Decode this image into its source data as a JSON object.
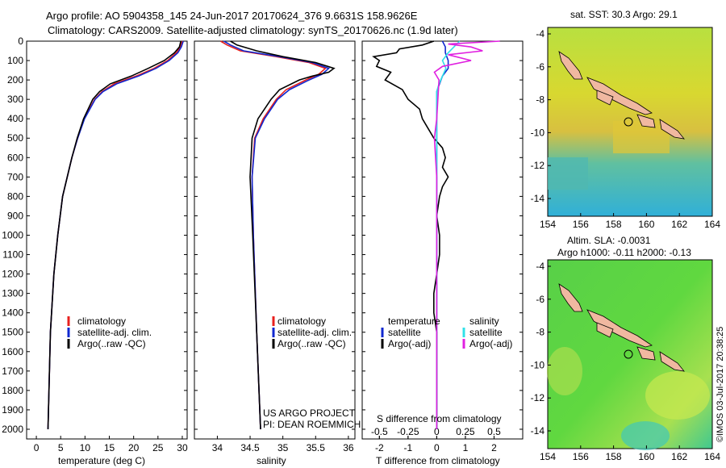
{
  "header": {
    "line1": "Argo profile: AO 5904358_145 24-Jun-2017 20170624_376 9.6631S 158.9626E",
    "line2": "Climatology: CARS2009. Satellite-adjusted climatology: synTS_20170626.nc (1.9d later)"
  },
  "colors": {
    "clim": "#e8201e",
    "sat": "#1028d0",
    "argo": "#000000",
    "sat_s": "#30e0e8",
    "argo_s": "#e020e0"
  },
  "depth_axis": {
    "ylim": [
      0,
      2050
    ],
    "ticks": [
      "0",
      "100",
      "200",
      "300",
      "400",
      "500",
      "600",
      "700",
      "800",
      "900",
      "1000",
      "1100",
      "1200",
      "1300",
      "1400",
      "1500",
      "1600",
      "1700",
      "1800",
      "1900",
      "2000"
    ]
  },
  "chart_data": [
    {
      "type": "line",
      "title": "temperature",
      "xlabel": "temperature (deg C)",
      "ylabel": "depth",
      "xlim": [
        -2,
        31
      ],
      "ylim": [
        2050,
        0
      ],
      "xticks": [
        "0",
        "5",
        "10",
        "15",
        "20",
        "25",
        "30"
      ],
      "legend": [
        "climatology",
        "satellite-adj. clim.",
        "Argo(..raw -QC)"
      ],
      "series": [
        {
          "name": "climatology",
          "depth": [
            0,
            30,
            60,
            100,
            140,
            180,
            220,
            260,
            300,
            400,
            500,
            600,
            800,
            1000,
            1200,
            1500,
            2000
          ],
          "values": [
            30,
            29.6,
            28.8,
            27,
            24.2,
            20.5,
            16,
            13.5,
            12,
            9.8,
            8.5,
            7.3,
            5.4,
            4.4,
            3.6,
            2.9,
            2.4
          ]
        },
        {
          "name": "satellite-adj. clim.",
          "depth": [
            0,
            30,
            60,
            100,
            140,
            180,
            220,
            260,
            300,
            400,
            500,
            600,
            800,
            1000,
            1200,
            1500,
            2000
          ],
          "values": [
            30.2,
            29.8,
            29.1,
            27.3,
            24.6,
            21,
            16.5,
            13.7,
            12.1,
            9.9,
            8.5,
            7.3,
            5.4,
            4.4,
            3.6,
            2.9,
            2.4
          ]
        },
        {
          "name": "Argo(..raw -QC)",
          "depth": [
            0,
            30,
            60,
            100,
            140,
            180,
            220,
            260,
            300,
            400,
            500,
            600,
            800,
            1000,
            1200,
            1500,
            2000
          ],
          "values": [
            29.7,
            29.4,
            28.4,
            26.3,
            23,
            19.5,
            15.2,
            13,
            11.6,
            9.7,
            8.4,
            7.3,
            5.4,
            4.4,
            3.6,
            2.9,
            2.4
          ]
        }
      ]
    },
    {
      "type": "line",
      "title": "salinity",
      "xlabel": "salinity",
      "ylabel": "depth",
      "xlim": [
        33.65,
        36.1
      ],
      "ylim": [
        2050,
        0
      ],
      "xticks": [
        "34",
        "34.5",
        "35",
        "35.5",
        "36"
      ],
      "legend": [
        "climatology",
        "satellite-adj. clim.",
        "Argo(..raw -QC)"
      ],
      "series": [
        {
          "name": "climatology",
          "depth": [
            0,
            20,
            50,
            80,
            110,
            140,
            170,
            200,
            250,
            300,
            400,
            500,
            700,
            1000,
            1500,
            2000
          ],
          "values": [
            34.05,
            34.15,
            34.35,
            34.9,
            35.4,
            35.65,
            35.55,
            35.35,
            35.05,
            34.9,
            34.7,
            34.57,
            34.53,
            34.55,
            34.6,
            34.66
          ]
        },
        {
          "name": "satellite-adj. clim.",
          "depth": [
            0,
            20,
            50,
            80,
            110,
            140,
            170,
            200,
            250,
            300,
            400,
            500,
            700,
            1000,
            1500,
            2000
          ],
          "values": [
            34.1,
            34.2,
            34.4,
            34.95,
            35.45,
            35.7,
            35.6,
            35.4,
            35.1,
            34.92,
            34.72,
            34.58,
            34.53,
            34.55,
            34.6,
            34.66
          ]
        },
        {
          "name": "Argo(..raw -QC)",
          "depth": [
            0,
            20,
            50,
            80,
            110,
            140,
            160,
            180,
            200,
            250,
            300,
            400,
            500,
            700,
            1000,
            1500,
            2000
          ],
          "values": [
            34.2,
            34.3,
            34.6,
            35.0,
            35.5,
            35.78,
            35.7,
            35.45,
            35.25,
            34.95,
            34.82,
            34.62,
            34.53,
            34.5,
            34.54,
            34.6,
            34.66
          ]
        }
      ],
      "annotations": [
        "US ARGO PROJECT",
        "PI: DEAN ROEMMICH"
      ]
    },
    {
      "type": "line",
      "title": "difference from climatology",
      "xlabel": "T difference from climatology",
      "xlabel_top": "S difference from climatology",
      "xlim": [
        -2.6,
        3.0
      ],
      "ylim": [
        2050,
        0
      ],
      "xticks_t": [
        "-2",
        "-1",
        "0",
        "1",
        "2"
      ],
      "xticks_s": [
        "-0.5",
        "-0.25",
        "0",
        "0.25",
        "0.5"
      ],
      "legend_t": {
        "title": "temperature",
        "items": [
          "satellite",
          "Argo(-adj)"
        ]
      },
      "legend_s": {
        "title": "salinity",
        "items": [
          "satellite",
          "Argo(-adj)"
        ]
      },
      "series": [
        {
          "name": "temperature satellite",
          "depth": [
            0,
            30,
            60,
            100,
            140,
            180,
            220,
            260,
            300,
            400,
            500,
            700,
            1000,
            1500,
            2000
          ],
          "values": [
            0.2,
            0.3,
            0.3,
            0.4,
            0.4,
            0.2,
            0.1,
            0.0,
            0.0,
            0.0,
            0.0,
            0.0,
            0.0,
            0.0,
            0.0
          ]
        },
        {
          "name": "temperature Argo(-adj)",
          "depth": [
            0,
            20,
            40,
            60,
            80,
            100,
            130,
            160,
            200,
            250,
            300,
            350,
            400,
            450,
            500,
            550,
            600,
            650,
            700,
            750,
            800,
            900,
            1000,
            1100,
            1200,
            1300,
            1400,
            1500,
            1600,
            1800,
            2000
          ],
          "values": [
            -0.1,
            -0.5,
            -1.3,
            -1.4,
            -2.2,
            -2.0,
            -2.1,
            -1.6,
            -1.8,
            -1.2,
            -1.0,
            -0.6,
            -0.5,
            -0.3,
            -0.1,
            0.2,
            0.3,
            0.2,
            0.4,
            0.2,
            0.1,
            0.0,
            0.1,
            0.1,
            0.0,
            -0.1,
            -0.1,
            0.0,
            0.0,
            0.0,
            0.0
          ]
        },
        {
          "name": "salinity satellite",
          "depth": [
            0,
            30,
            60,
            100,
            140,
            180,
            220,
            260,
            300,
            400,
            500,
            700,
            1000,
            1500,
            2000
          ],
          "values": [
            0.2,
            0.15,
            0.1,
            0.05,
            0.08,
            0.05,
            0.02,
            0.0,
            0.0,
            0.0,
            0.0,
            0.0,
            0.0,
            0.0,
            0.0
          ]
        },
        {
          "name": "salinity Argo(-adj)",
          "depth": [
            0,
            15,
            30,
            50,
            70,
            100,
            130,
            160,
            200,
            300,
            400,
            500,
            700,
            1000,
            1300,
            1500,
            1700,
            2000
          ],
          "values": [
            0.55,
            0.1,
            0.3,
            0.4,
            0.1,
            0.3,
            0.05,
            -0.02,
            0.02,
            0.01,
            0.0,
            -0.02,
            0.0,
            0.0,
            0.0,
            0.0,
            0.0,
            0.0
          ]
        }
      ]
    }
  ],
  "maps": [
    {
      "title": "sat. SST: 30.3 Argo: 29.1",
      "lat_ticks": [
        "-4",
        "-6",
        "-8",
        "-10",
        "-12",
        "-14"
      ],
      "lon_ticks": [
        "154",
        "156",
        "158",
        "160",
        "162",
        "164"
      ]
    },
    {
      "title_line1": "Altim. SLA: -0.0031",
      "title_line2": "Argo h1000: -0.11 h2000: -0.13",
      "lat_ticks": [
        "-4",
        "-6",
        "-8",
        "-10",
        "-12",
        "-14"
      ],
      "lon_ticks": [
        "154",
        "156",
        "158",
        "160",
        "162",
        "164"
      ]
    }
  ],
  "credit": "©IMOS 03-Jul-2017 20:38:25"
}
